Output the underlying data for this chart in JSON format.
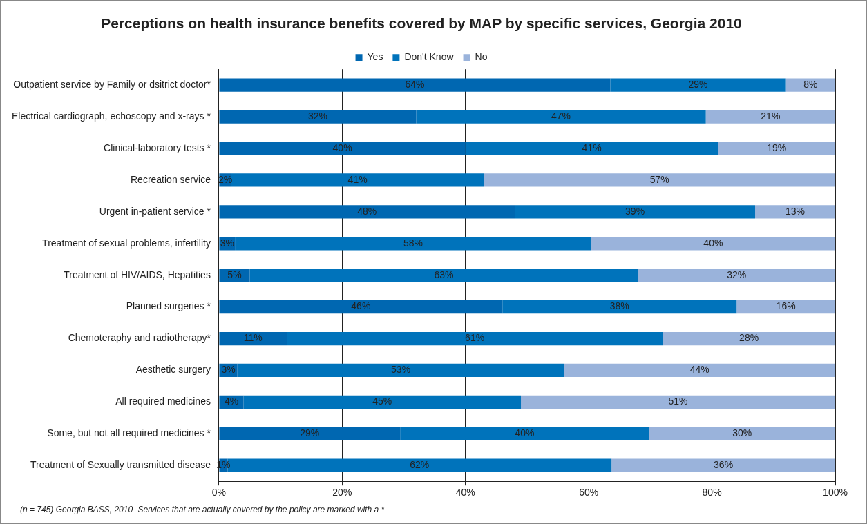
{
  "chart_data": {
    "type": "bar",
    "orientation": "horizontal",
    "stacked": true,
    "title": "Perceptions on health insurance benefits covered by MAP by specific services, Georgia 2010",
    "categories": [
      "Outpatient service by Family or dsitrict doctor*",
      "Electrical cardiograph, echoscopy and x-rays *",
      "Clinical-laboratory tests *",
      "Recreation service",
      "Urgent in-patient service *",
      "Treatment of sexual problems, infertility",
      "Treatment of HIV/AIDS, Hepatities",
      "Planned surgeries *",
      "Chemoteraphy and radiotherapy*",
      "Aesthetic surgery",
      "All required medicines",
      "Some, but not all required medicines *",
      "Treatment of Sexually transmitted disease"
    ],
    "series": [
      {
        "name": "Yes",
        "color": "#0067b1",
        "values": [
          63.5,
          32,
          40,
          2,
          48,
          2.6,
          5,
          46,
          11,
          3,
          4,
          29.4,
          1.4
        ],
        "value_labels": [
          "64%",
          "32%",
          "40%",
          "2%",
          "48%",
          "3%",
          "5%",
          "46%",
          "11%",
          "3%",
          "4%",
          "29%",
          "1%"
        ]
      },
      {
        "name": "Don't Know",
        "color": "#0073bb",
        "values": [
          28.5,
          47,
          41,
          41,
          39,
          57.8,
          63,
          38,
          61,
          53,
          45,
          40.4,
          62.3
        ],
        "value_labels": [
          "29%",
          "47%",
          "41%",
          "41%",
          "39%",
          "58%",
          "63%",
          "38%",
          "61%",
          "53%",
          "45%",
          "40%",
          "62%"
        ]
      },
      {
        "name": "No",
        "color": "#9ab3db",
        "values": [
          8,
          21,
          19,
          57,
          13,
          39.6,
          32,
          16,
          28,
          44,
          51,
          30.2,
          36.3
        ],
        "value_labels": [
          "8%",
          "21%",
          "19%",
          "57%",
          "13%",
          "40%",
          "32%",
          "16%",
          "28%",
          "44%",
          "51%",
          "30%",
          "36%"
        ]
      }
    ],
    "xlim": [
      0,
      100
    ],
    "xticks": [
      {
        "value": 0,
        "label": "0%"
      },
      {
        "value": 20,
        "label": "20%"
      },
      {
        "value": 40,
        "label": "40%"
      },
      {
        "value": 60,
        "label": "60%"
      },
      {
        "value": 80,
        "label": "80%"
      },
      {
        "value": 100,
        "label": "100%"
      }
    ],
    "grid": "x",
    "legend": "top",
    "annotations": [
      "(n = 745) Georgia BASS, 2010- Services that are actually covered by the policy are marked with a *"
    ]
  }
}
